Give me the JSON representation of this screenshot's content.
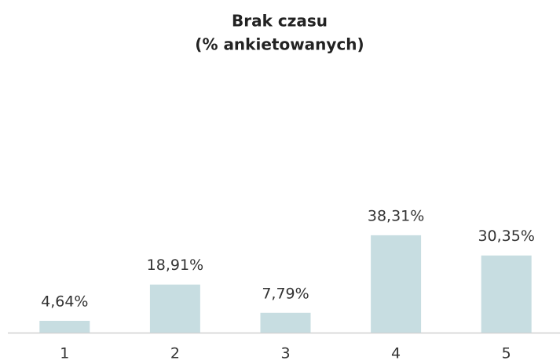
{
  "chart_data": {
    "type": "bar",
    "title": "Brak czasu",
    "subtitle": "(% ankietowanych)",
    "categories": [
      "1",
      "2",
      "3",
      "4",
      "5"
    ],
    "values": [
      4.64,
      18.91,
      7.79,
      38.31,
      30.35
    ],
    "value_labels": [
      "4,64%",
      "18,91%",
      "7,79%",
      "38,31%",
      "30,35%"
    ],
    "color": "#c7dde1"
  }
}
